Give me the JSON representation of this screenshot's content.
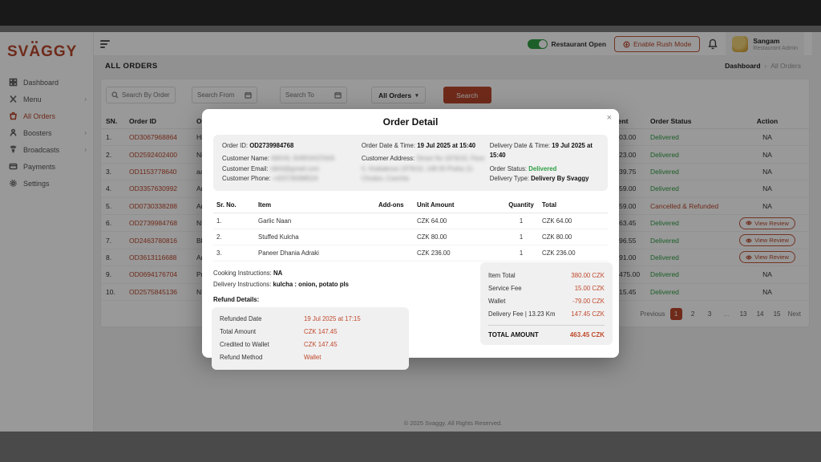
{
  "colors": {
    "brand": "#b9472c",
    "green": "#2f9e44",
    "band_dark": "#191919",
    "band_gray": "#4a4a4a"
  },
  "sidebar": {
    "logo": "SVAGGY",
    "items": [
      {
        "label": "Dashboard",
        "icon": "dashboard-icon",
        "chevron": false,
        "active": false
      },
      {
        "label": "Menu",
        "icon": "menu-icon",
        "chevron": true,
        "active": false
      },
      {
        "label": "All Orders",
        "icon": "orders-icon",
        "chevron": false,
        "active": true
      },
      {
        "label": "Boosters",
        "icon": "boosters-icon",
        "chevron": true,
        "active": false
      },
      {
        "label": "Broadcasts",
        "icon": "broadcasts-icon",
        "chevron": true,
        "active": false
      },
      {
        "label": "Payments",
        "icon": "payments-icon",
        "chevron": false,
        "active": false
      },
      {
        "label": "Settings",
        "icon": "settings-icon",
        "chevron": false,
        "active": false
      }
    ]
  },
  "topbar": {
    "toggle_label": "Restaurant Open",
    "rush_button": "Enable Rush Mode",
    "user": {
      "name": "Sangam",
      "role": "Restaurant Admin"
    }
  },
  "breadcrumb": {
    "page_title": "ALL ORDERS",
    "home": "Dashboard",
    "separator": "›",
    "current": "All Orders"
  },
  "filters": {
    "search_placeholder": "Search By Order Id",
    "from_placeholder": "Search From",
    "to_placeholder": "Search To",
    "status_select": "All Orders",
    "select_caret": "▾",
    "search_button": "Search"
  },
  "orders_table": {
    "columns": [
      "SN.",
      "Order ID",
      "Ordered By",
      "Payment",
      "Order Status",
      "Action"
    ],
    "rows": [
      {
        "sn": "1.",
        "order_id": "OD3067968864",
        "ordered_by": "Hite",
        "payment": "CZK 403.00",
        "status": "Delivered",
        "status_type": "delivered",
        "action": "NA"
      },
      {
        "sn": "2.",
        "order_id": "OD2592402400",
        "ordered_by": "Nish",
        "payment": "CZK 523.00",
        "status": "Delivered",
        "status_type": "delivered",
        "action": "NA"
      },
      {
        "sn": "3.",
        "order_id": "OD1153778640",
        "ordered_by": "aasf",
        "payment": "CZK 939.75",
        "status": "Delivered",
        "status_type": "delivered",
        "action": "NA"
      },
      {
        "sn": "4.",
        "order_id": "OD3357630992",
        "ordered_by": "Arvi",
        "payment": "CZK 659.00",
        "status": "Delivered",
        "status_type": "delivered",
        "action": "NA"
      },
      {
        "sn": "5.",
        "order_id": "OD0730338288",
        "ordered_by": "Arvi",
        "payment": "CZK 659.00",
        "status": "Cancelled & Refunded",
        "status_type": "cancelled",
        "action": "NA"
      },
      {
        "sn": "6.",
        "order_id": "OD2739984768",
        "ordered_by": "NIKH",
        "payment": "CZK 463.45",
        "status": "Delivered",
        "status_type": "delivered",
        "action": "View Review"
      },
      {
        "sn": "7.",
        "order_id": "OD2463780816",
        "ordered_by": "Bhav",
        "payment": "CZK 296.55",
        "status": "Delivered",
        "status_type": "delivered",
        "action": "View Review"
      },
      {
        "sn": "8.",
        "order_id": "OD3613116688",
        "ordered_by": "Arha",
        "payment": "CZK 591.00",
        "status": "Delivered",
        "status_type": "delivered",
        "action": "View Review"
      },
      {
        "sn": "9.",
        "order_id": "OD0694176704",
        "ordered_by": "Prag",
        "payment": "CZK 1475.00",
        "status": "Delivered",
        "status_type": "delivered",
        "action": "NA"
      },
      {
        "sn": "10.",
        "order_id": "OD2575845136",
        "ordered_by": "NIKH",
        "payment": "CZK 715.45",
        "status": "Delivered",
        "status_type": "delivered",
        "action": "NA"
      }
    ]
  },
  "pagination": {
    "previous": "Previous",
    "pages": [
      "1",
      "2",
      "3",
      "…",
      "13",
      "14",
      "15"
    ],
    "active": "1",
    "next": "Next"
  },
  "footer": {
    "copyright": "© 2025 Svaggy. All Rights Reserved."
  },
  "modal": {
    "title": "Order Detail",
    "close": "×",
    "info": {
      "order_id_label": "Order ID:",
      "order_id": "OD2739984768",
      "customer_name_label": "Customer Name:",
      "customer_name": "NIKHIL SHRIVASTAVA",
      "customer_email_label": "Customer Email:",
      "customer_email": "nikhil@gmail.com",
      "customer_phone_label": "Customer Phone:",
      "customer_phone": "+420735088524",
      "order_dt_label": "Order Date & Time:",
      "order_dt": "19 Jul 2025 at 15:40",
      "customer_address_label": "Customer Address:",
      "customer_address": "Street No 1976/10, Floor 5, Hrabakova 1976/10, 148 00 Praha 11-Chodov, Czechia",
      "delivery_dt_label": "Delivery Date & Time:",
      "delivery_dt": "19 Jul 2025 at 15:40",
      "order_status_label": "Order Status:",
      "order_status": "Delivered",
      "delivery_type_label": "Delivery Type:",
      "delivery_type": "Delivery By Svaggy"
    },
    "items": {
      "columns": [
        "Sr. No.",
        "Item",
        "Add-ons",
        "Unit Amount",
        "Quantity",
        "Total"
      ],
      "rows": [
        {
          "sr": "1.",
          "item": "Garlic Naan",
          "addons": "",
          "unit": "CZK 64.00",
          "qty": "1",
          "total": "CZK 64.00"
        },
        {
          "sr": "2.",
          "item": "Stuffed Kulcha",
          "addons": "",
          "unit": "CZK 80.00",
          "qty": "1",
          "total": "CZK 80.00"
        },
        {
          "sr": "3.",
          "item": "Paneer Dhania Adraki",
          "addons": "",
          "unit": "CZK 236.00",
          "qty": "1",
          "total": "CZK 236.00"
        }
      ]
    },
    "cooking_label": "Cooking Instructions:",
    "cooking_value": "NA",
    "delivery_label": "Delivery Instructions:",
    "delivery_value": "kulcha : onion, potato pls",
    "refund": {
      "heading": "Refund Details:",
      "rows": [
        {
          "label": "Refunded Date",
          "value": "19 Jul 2025 at 17:15"
        },
        {
          "label": "Total Amount",
          "value": "CZK 147.45"
        },
        {
          "label": "Credited to Wallet",
          "value": "CZK 147.45"
        },
        {
          "label": "Refund Method",
          "value": "Wallet"
        }
      ]
    },
    "totals": {
      "rows": [
        {
          "label": "Item Total",
          "value": "380.00 CZK"
        },
        {
          "label": "Service Fee",
          "value": "15.00 CZK"
        },
        {
          "label": "Wallet",
          "value": "-79.00 CZK"
        },
        {
          "label": "Delivery Fee | 13.23 Km",
          "value": "147.45 CZK"
        }
      ],
      "total_label": "TOTAL AMOUNT",
      "total_value": "463.45 CZK"
    }
  }
}
